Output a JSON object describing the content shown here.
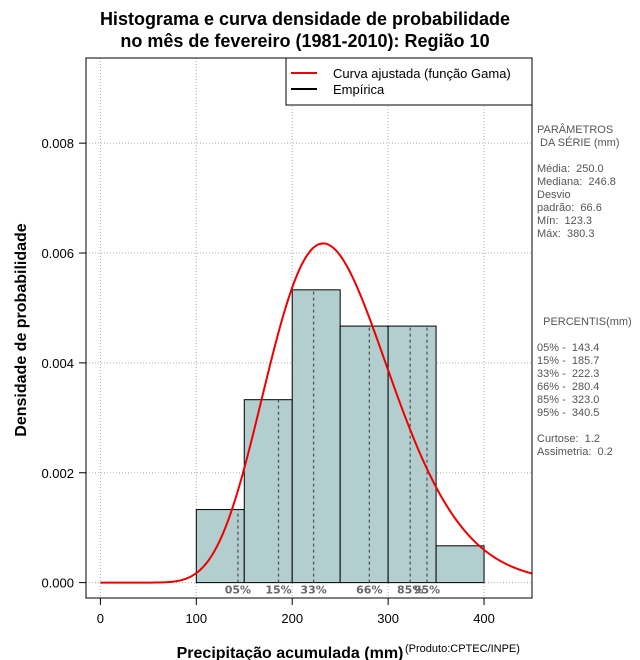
{
  "chart_data": {
    "type": "histogram",
    "title_line1": "Histograma e curva densidade de probabilidade",
    "title_line2": "no mês de fevereiro (1981-2010): Região 10",
    "xlabel": "Precipitação acumulada (mm)",
    "ylabel": "Densidade de probabilidade",
    "credit": "(Produto:CPTEC/INPE)",
    "xlim": [
      -15,
      450
    ],
    "ylim": [
      -0.00028,
      0.00955
    ],
    "x_ticks": [
      0,
      100,
      200,
      300,
      400
    ],
    "x_tick_labels": [
      "0",
      "100",
      "200",
      "300",
      "400"
    ],
    "y_ticks": [
      0,
      0.002,
      0.004,
      0.006,
      0.008
    ],
    "y_tick_labels": [
      "0.000",
      "0.002",
      "0.004",
      "0.006",
      "0.008"
    ],
    "grid": true,
    "bins": [
      {
        "from": 100,
        "to": 150,
        "density": 0.00133
      },
      {
        "from": 150,
        "to": 200,
        "density": 0.00333
      },
      {
        "from": 200,
        "to": 250,
        "density": 0.00533
      },
      {
        "from": 250,
        "to": 300,
        "density": 0.00467
      },
      {
        "from": 300,
        "to": 350,
        "density": 0.00467
      },
      {
        "from": 350,
        "to": 400,
        "density": 0.00067
      }
    ],
    "gamma_fit": {
      "mean": 250.0,
      "sd": 66.6
    },
    "percentile_lines": [
      {
        "label": "05%",
        "x": 143.4
      },
      {
        "label": "15%",
        "x": 185.7
      },
      {
        "label": "33%",
        "x": 222.3
      },
      {
        "label": "66%",
        "x": 280.4
      },
      {
        "label": "85%",
        "x": 323.0
      },
      {
        "label": "95%",
        "x": 340.5
      }
    ],
    "legend": {
      "position": "top-right",
      "entries": [
        {
          "label": "Curva ajustada (função Gama)",
          "color": "#ee0000"
        },
        {
          "label": "Empírica",
          "color": "#000000"
        }
      ]
    },
    "colors": {
      "bar_fill": "#b3cece",
      "curve": "#ee0000",
      "grid": "#b0b0b0",
      "percentile": "#555555"
    }
  },
  "stats_panel": {
    "lines": [
      "PARÂMETROS",
      " DA SÉRIE (mm)",
      "",
      "Média:  250.0",
      "Mediana:  246.8",
      "Desvio",
      "padrão:  66.6",
      "Mín:  123.3",
      "Máx:  380.3"
    ]
  },
  "percentile_panel": {
    "lines": [
      "  PERCENTIS(mm)",
      "",
      "05% -  143.4",
      "15% -  185.7",
      "33% -  222.3",
      "66% -  280.4",
      "85% -  323.0",
      "95% -  340.5",
      "",
      "Curtose:  1.2",
      "Assimetria:  0.2"
    ]
  }
}
